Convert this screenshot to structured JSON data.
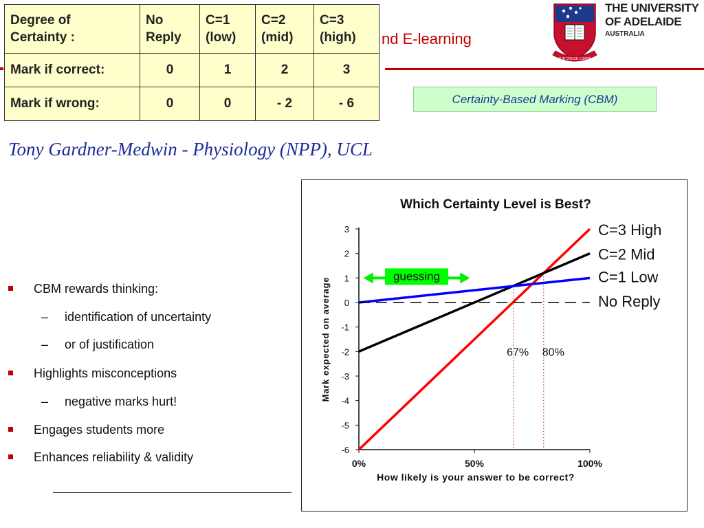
{
  "header": {
    "title_fragment": "nd E-learning"
  },
  "logo": {
    "line1": "THE UNIVERSITY",
    "line2": "OF ADELAIDE",
    "line3": "AUSTRALIA",
    "motto": "SUB CRUCE LUMEN"
  },
  "table": {
    "header": [
      [
        "Degree of",
        "Certainty :"
      ],
      [
        "No",
        "Reply"
      ],
      [
        "C=1",
        "(low)"
      ],
      [
        "C=2",
        "(mid)"
      ],
      [
        "C=3",
        "(high)"
      ]
    ],
    "rows": [
      {
        "label": "Mark if correct:",
        "values": [
          "0",
          "1",
          "2",
          "3"
        ]
      },
      {
        "label": "Mark if wrong:",
        "values": [
          "0",
          "0",
          "- 2",
          "- 6"
        ]
      }
    ]
  },
  "cbm_label": "Certainty-Based Marking  (CBM)",
  "author": "Tony Gardner-Medwin - Physiology (NPP), UCL",
  "bullets": [
    {
      "text": "CBM rewards thinking:",
      "subs": [
        "identification of uncertainty",
        "or of justification"
      ]
    },
    {
      "text": "Highlights misconceptions",
      "subs": [
        "negative marks hurt!"
      ]
    },
    {
      "text": "Engages students more",
      "subs": []
    },
    {
      "text": "Enhances reliability & validity",
      "subs": []
    }
  ],
  "colors": {
    "accent_red": "#c00000",
    "table_fill": "#ffffcc",
    "label_fill": "#ccffcc",
    "author_blue": "#1c2b9a"
  },
  "chart_data": {
    "type": "line",
    "title": "Which Certainty Level is Best?",
    "xlabel": "How likely is your answer to be correct?",
    "ylabel": "Mark expected on average",
    "xlim": [
      0,
      100
    ],
    "ylim": [
      -6,
      3
    ],
    "x_ticks": [
      "0%",
      "50%",
      "100%"
    ],
    "x_tick_values": [
      0,
      50,
      100
    ],
    "y_ticks": [
      -6,
      -5,
      -4,
      -3,
      -2,
      -1,
      0,
      1,
      2,
      3
    ],
    "series": [
      {
        "name": "C=3 High",
        "color": "#ff0000",
        "x": [
          0,
          100
        ],
        "y": [
          -6,
          3
        ]
      },
      {
        "name": "C=2 Mid",
        "color": "#000000",
        "x": [
          0,
          100
        ],
        "y": [
          -2,
          2
        ]
      },
      {
        "name": "C=1 Low",
        "color": "#0000ff",
        "x": [
          0,
          100
        ],
        "y": [
          0,
          1
        ]
      },
      {
        "name": "No Reply",
        "color": "#000000",
        "dashed": true,
        "x": [
          0,
          100
        ],
        "y": [
          0,
          0
        ]
      }
    ],
    "annotations": {
      "thresholds": [
        {
          "label": "67%",
          "x": 67,
          "y": 0.67
        },
        {
          "label": "80%",
          "x": 80,
          "y": 1.2
        }
      ],
      "guessing": {
        "label": "guessing",
        "x_range": [
          2,
          48
        ],
        "y": 1,
        "fill": "#00ff00"
      }
    },
    "grid": false,
    "legend": "right, at line ends"
  }
}
